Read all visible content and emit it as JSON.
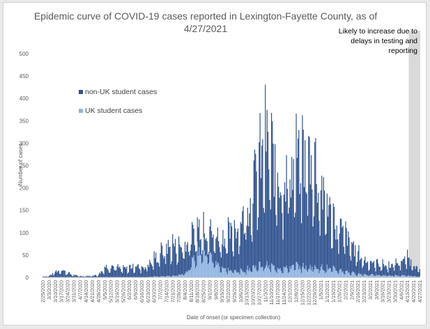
{
  "chart_data": {
    "type": "bar",
    "stacked": true,
    "title_line1": "Epidemic curve of COVID-19 cases reported in Lexington-Fayette County, as of",
    "title_line2": "4/27/2021",
    "xlabel": "Date of onset (or specimen collection)",
    "ylabel": "Number of cases",
    "ylim": [
      0,
      500
    ],
    "yticks": [
      0,
      50,
      100,
      150,
      200,
      250,
      300,
      350,
      400,
      450,
      500
    ],
    "x_start": "2/25/2020",
    "x_end": "4/27/2021",
    "tick_labels": [
      "2/25/2020",
      "3/3/2020",
      "3/10/2020",
      "3/17/2020",
      "3/24/2020",
      "3/31/2020",
      "4/7/2020",
      "4/14/2020",
      "4/21/2020",
      "4/28/2020",
      "5/5/2020",
      "5/12/2020",
      "5/19/2020",
      "5/26/2020",
      "6/2/2020",
      "6/9/2020",
      "6/16/2020",
      "6/23/2020",
      "6/30/2020",
      "7/7/2020",
      "7/14/2020",
      "7/21/2020",
      "7/28/2020",
      "8/4/2020",
      "8/11/2020",
      "8/18/2020",
      "8/25/2020",
      "9/1/2020",
      "9/8/2020",
      "9/15/2020",
      "9/22/2020",
      "9/29/2020",
      "10/6/2020",
      "10/13/2020",
      "10/20/2020",
      "10/27/2020",
      "11/3/2020",
      "11/10/2020",
      "11/17/2020",
      "11/24/2020",
      "12/1/2020",
      "12/8/2020",
      "12/15/2020",
      "12/22/2020",
      "12/29/2020",
      "1/5/2021",
      "1/12/2021",
      "1/19/2021",
      "1/26/2021",
      "2/2/2021",
      "2/9/2021",
      "2/16/2021",
      "2/23/2021",
      "3/2/2021",
      "3/9/2021",
      "3/16/2021",
      "3/23/2021",
      "3/30/2021",
      "4/6/2021",
      "4/13/2021",
      "4/20/2021",
      "4/27/2021"
    ],
    "weekly_values": {
      "series_names": [
        "non-UK student cases",
        "UK student cases"
      ],
      "non_uk_approx_daily": [
        2,
        3,
        12,
        18,
        10,
        5,
        3,
        3,
        4,
        6,
        22,
        26,
        22,
        18,
        22,
        26,
        22,
        26,
        38,
        52,
        60,
        68,
        60,
        62,
        58,
        55,
        48,
        52,
        60,
        66,
        74,
        92,
        110,
        130,
        180,
        220,
        270,
        240,
        205,
        195,
        205,
        225,
        245,
        230,
        230,
        165,
        145,
        110,
        95,
        78,
        60,
        45,
        32,
        28,
        26,
        24,
        22,
        26,
        33,
        38,
        28,
        12
      ],
      "uk_approx_daily": [
        0,
        0,
        0,
        0,
        0,
        0,
        0,
        0,
        0,
        0,
        0,
        0,
        0,
        0,
        0,
        0,
        0,
        1,
        2,
        2,
        3,
        3,
        6,
        10,
        28,
        55,
        62,
        48,
        32,
        22,
        16,
        14,
        14,
        18,
        22,
        26,
        28,
        24,
        22,
        20,
        22,
        26,
        24,
        22,
        24,
        22,
        20,
        18,
        16,
        14,
        10,
        8,
        7,
        6,
        5,
        5,
        4,
        4,
        4,
        4,
        3,
        2
      ]
    },
    "legend": [
      {
        "name": "non-UK student cases",
        "color": "#2f528f"
      },
      {
        "name": "UK student cases",
        "color": "#8fb4e3"
      }
    ],
    "annotation": "Likely to increase due to delays in testing and reporting",
    "annotation_lines": [
      "Likely to increase due to",
      "delays in testing and",
      "reporting"
    ],
    "shaded_region_from": "4/15/2021",
    "shaded_color": "#d9d9d9",
    "grid": false,
    "legend_position": "left-middle"
  }
}
